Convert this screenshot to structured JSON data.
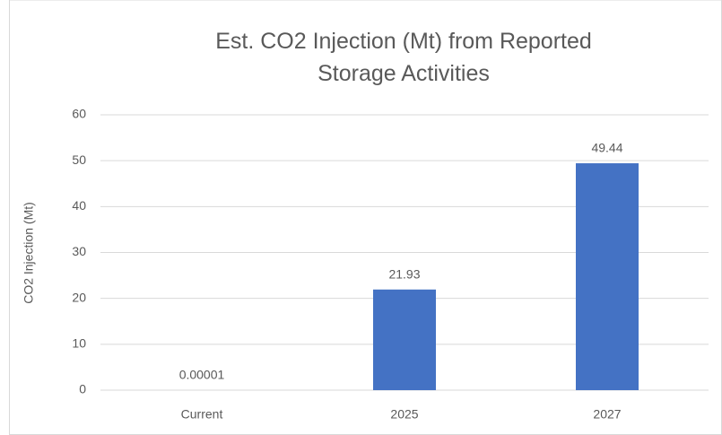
{
  "chart_data": {
    "type": "bar",
    "title": "Est. CO2 Injection (Mt) from Reported Storage Activities",
    "y_axis_label": "CO2 Injection (Mt)",
    "categories": [
      "Current",
      "2025",
      "2027"
    ],
    "values": [
      1e-05,
      21.93,
      49.44
    ],
    "value_labels": [
      "0.00001",
      "21.93",
      "49.44"
    ],
    "color": "#4472c4",
    "ylim": [
      0,
      60
    ],
    "yticks": [
      0,
      10,
      20,
      30,
      40,
      50,
      60
    ],
    "grid": true
  }
}
